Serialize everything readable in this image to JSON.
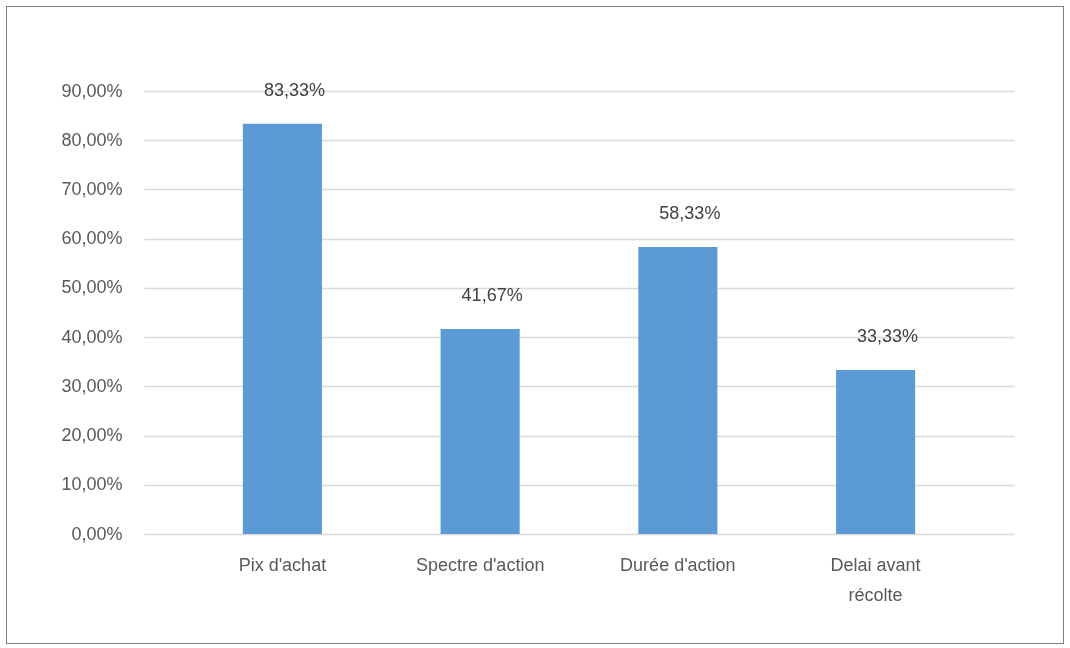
{
  "chart_data": {
    "type": "bar",
    "categories": [
      "Pix d'achat",
      "Spectre d'action",
      "Durée d'action",
      "Delai avant récolte"
    ],
    "values": [
      83.33,
      41.67,
      58.33,
      33.33
    ],
    "value_labels": [
      "83,33%",
      "41,67%",
      "58,33%",
      "33,33%"
    ],
    "color": "#5b9bd5",
    "ylim": [
      0,
      90
    ],
    "yticks": [
      {
        "value": 0,
        "label": "0,00%"
      },
      {
        "value": 10,
        "label": "10,00%"
      },
      {
        "value": 20,
        "label": "20,00%"
      },
      {
        "value": 30,
        "label": "30,00%"
      },
      {
        "value": 40,
        "label": "40,00%"
      },
      {
        "value": 50,
        "label": "50,00%"
      },
      {
        "value": 60,
        "label": "60,00%"
      },
      {
        "value": 70,
        "label": "70,00%"
      },
      {
        "value": 80,
        "label": "80,00%"
      },
      {
        "value": 90,
        "label": "90,00%"
      }
    ],
    "grid": "y"
  }
}
